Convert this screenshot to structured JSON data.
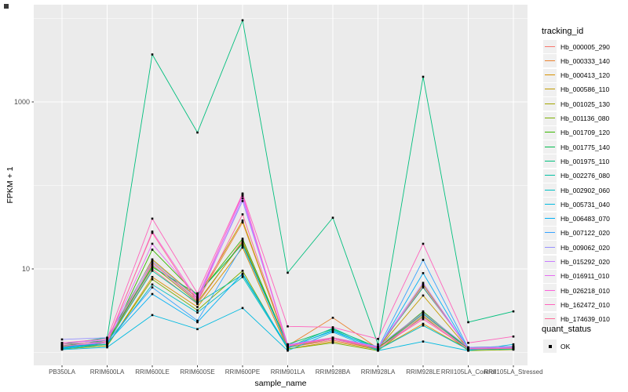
{
  "chart_data": {
    "type": "line",
    "xlabel": "sample_name",
    "ylabel": "FPKM + 1",
    "y_scale": "log10",
    "y_breaks": [
      10,
      1000
    ],
    "y_minor_breaks": [
      1,
      100,
      10000
    ],
    "ylim": [
      0.7,
      14500
    ],
    "grid": true,
    "legend_position": "right",
    "legend_title": "tracking_id",
    "legend2_title": "quant_status",
    "legend2_items": [
      "OK"
    ],
    "panel_bg": "#EBEBEB",
    "grid_color": "#FFFFFF",
    "point_color": "#000000",
    "tick_label_color": "#4D4D4D",
    "categories": [
      "PB350LA",
      "RRIM600LA",
      "RRIM600LE",
      "RRIM600SE",
      "RRIM600PE",
      "RRIM901LA",
      "RRIM928BA",
      "RRIM928LA",
      "RRIM928LE",
      "RRII105LA_Control",
      "RRII105LA_Stressed"
    ],
    "series": [
      {
        "name": "Hb_000005_290",
        "color": "#F8766D",
        "values": [
          1.2,
          1.3,
          10,
          3.8,
          22,
          1.15,
          1.4,
          1.1,
          2.8,
          1.1,
          1.1
        ]
      },
      {
        "name": "Hb_000333_140",
        "color": "#EA8331",
        "values": [
          1.15,
          1.25,
          12,
          4.2,
          36,
          1.2,
          2.6,
          1.12,
          3.0,
          1.12,
          1.15
        ]
      },
      {
        "name": "Hb_000413_120",
        "color": "#D89000",
        "values": [
          1.1,
          1.2,
          8,
          3.5,
          18,
          1.1,
          1.35,
          1.08,
          2.2,
          1.08,
          1.1
        ]
      },
      {
        "name": "Hb_000586_110",
        "color": "#C09B00",
        "values": [
          1.12,
          1.35,
          13,
          4.5,
          38,
          1.18,
          1.5,
          1.1,
          4.8,
          1.1,
          1.12
        ]
      },
      {
        "name": "Hb_001025_130",
        "color": "#A3A500",
        "values": [
          1.18,
          1.3,
          11,
          4.0,
          21,
          1.15,
          1.45,
          1.1,
          6.5,
          1.1,
          1.1
        ]
      },
      {
        "name": "Hb_001136_080",
        "color": "#7CAE00",
        "values": [
          1.1,
          1.2,
          7.5,
          3.2,
          9.5,
          1.1,
          1.3,
          1.05,
          2.7,
          1.05,
          1.08
        ]
      },
      {
        "name": "Hb_001709_120",
        "color": "#39B600",
        "values": [
          1.15,
          1.25,
          17,
          4.8,
          23,
          1.2,
          1.5,
          1.12,
          3.1,
          1.1,
          1.12
        ]
      },
      {
        "name": "Hb_001775_140",
        "color": "#00BB4E",
        "values": [
          1.2,
          1.4,
          10.5,
          5.0,
          20,
          1.25,
          1.9,
          1.15,
          6.0,
          1.15,
          1.18
        ]
      },
      {
        "name": "Hb_001975_110",
        "color": "#00BF7D",
        "values": [
          1.25,
          1.5,
          3700,
          430,
          9500,
          9.0,
          41,
          1.25,
          2000,
          2.3,
          3.1
        ]
      },
      {
        "name": "Hb_002276_080",
        "color": "#00C1A3",
        "values": [
          1.15,
          1.3,
          9.5,
          3.9,
          8.5,
          1.15,
          1.95,
          1.1,
          2.9,
          1.1,
          1.15
        ]
      },
      {
        "name": "Hb_002902_060",
        "color": "#00BFC4",
        "values": [
          1.1,
          1.25,
          6.5,
          3.0,
          8.0,
          1.12,
          1.85,
          1.08,
          2.1,
          1.08,
          1.1
        ]
      },
      {
        "name": "Hb_005731_040",
        "color": "#00BAE0",
        "values": [
          1.08,
          1.15,
          2.8,
          1.9,
          3.4,
          1.05,
          1.75,
          1.05,
          1.35,
          1.05,
          1.25
        ]
      },
      {
        "name": "Hb_006483_070",
        "color": "#00B0F6",
        "values": [
          1.12,
          1.3,
          5.0,
          2.3,
          8.8,
          1.15,
          1.8,
          1.1,
          8.9,
          1.1,
          1.12
        ]
      },
      {
        "name": "Hb_007122_020",
        "color": "#35A2FF",
        "values": [
          1.15,
          1.35,
          6.0,
          2.4,
          19,
          1.2,
          1.45,
          1.12,
          12.8,
          1.12,
          1.15
        ]
      },
      {
        "name": "Hb_009062_020",
        "color": "#9590FF",
        "values": [
          1.43,
          1.5,
          12.5,
          4.4,
          65,
          1.25,
          1.5,
          1.18,
          3.0,
          1.15,
          1.18
        ]
      },
      {
        "name": "Hb_015292_020",
        "color": "#C77CFF",
        "values": [
          1.3,
          1.4,
          11.5,
          4.1,
          70,
          1.2,
          1.45,
          1.15,
          6.8,
          1.12,
          1.15
        ]
      },
      {
        "name": "Hb_016911_010",
        "color": "#E76BF3",
        "values": [
          1.25,
          1.35,
          20,
          4.6,
          75,
          1.22,
          1.5,
          1.15,
          6.2,
          1.12,
          1.15
        ]
      },
      {
        "name": "Hb_026218_010",
        "color": "#FA62DB",
        "values": [
          1.2,
          1.3,
          28,
          4.3,
          78,
          1.2,
          1.45,
          1.12,
          2.6,
          1.1,
          1.12
        ]
      },
      {
        "name": "Hb_162472_010",
        "color": "#FF62BC",
        "values": [
          1.3,
          1.45,
          40,
          5.1,
          80,
          2.05,
          2.0,
          1.45,
          20,
          1.3,
          1.55
        ]
      },
      {
        "name": "Hb_174639_010",
        "color": "#FF6A98",
        "values": [
          1.25,
          1.35,
          27,
          4.0,
          45,
          1.18,
          1.5,
          1.12,
          2.5,
          1.1,
          1.12
        ]
      }
    ]
  }
}
